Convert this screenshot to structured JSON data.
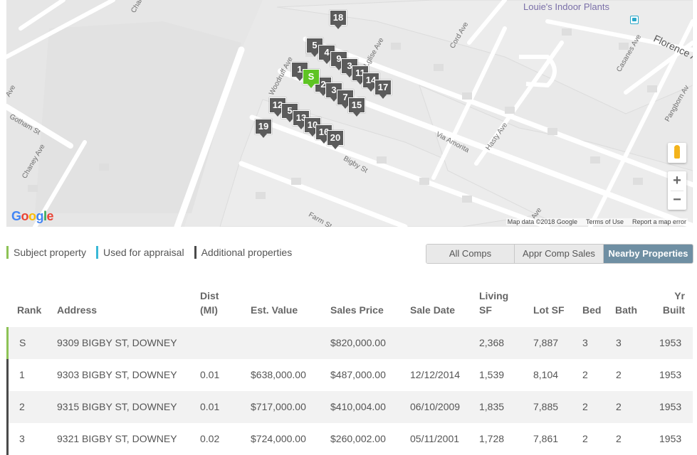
{
  "map": {
    "poi": "Louie's Indoor Plants",
    "streets": {
      "chaney_top": "Chane",
      "ave_left": "Ave",
      "gotham": "Gotham St",
      "chaney": "Chaney Ave",
      "woodruff": "Woodruff Ave",
      "lglise": "Lglise Ave",
      "cord": "Cord Ave",
      "casanes": "Casanes Ave",
      "florence": "Florence A",
      "pangborn": "Pangborn Av",
      "via_amorita": "Via Amorita",
      "hasty": "Hasty Ave",
      "bigby": "Bigby St",
      "farm": "Farm St",
      "ave_bottom": "Ave"
    },
    "markers": [
      "18",
      "5",
      "4",
      "9",
      "1",
      "S",
      "3",
      "2",
      "11",
      "14",
      "17",
      "3",
      "7",
      "15",
      "12",
      "5",
      "13",
      "10",
      "16",
      "20",
      "19"
    ],
    "google_logo": [
      "G",
      "o",
      "o",
      "g",
      "l",
      "e"
    ],
    "footer": {
      "data": "Map data ©2018 Google",
      "terms": "Terms of Use",
      "report": "Report a map error"
    },
    "zoom_in": "+",
    "zoom_out": "−"
  },
  "legend": [
    {
      "label": "Subject property",
      "color": "#8dc255"
    },
    {
      "label": "Used for appraisal",
      "color": "#39b8d6"
    },
    {
      "label": "Additional properties",
      "color": "#4a4a4a"
    }
  ],
  "tabs": [
    {
      "label": "All Comps",
      "active": false
    },
    {
      "label": "Appr Comp Sales",
      "active": false
    },
    {
      "label": "Nearby Properties",
      "active": true
    }
  ],
  "table": {
    "headers": {
      "rank": "Rank",
      "address": "Address",
      "dist_1": "Dist",
      "dist_2": "(MI)",
      "est_value": "Est. Value",
      "sales_price": "Sales Price",
      "sale_date": "Sale Date",
      "living_1": "Living",
      "living_2": "SF",
      "lot": "Lot SF",
      "bed": "Bed",
      "bath": "Bath",
      "yr_1": "Yr",
      "yr_2": "Built"
    },
    "rows": [
      {
        "rank": "S",
        "address": "9309 BIGBY ST, DOWNEY",
        "dist": "",
        "est_value": "",
        "sales_price": "$820,000.00",
        "sale_date": "",
        "living": "2,368",
        "lot": "7,887",
        "bed": "3",
        "bath": "3",
        "yr": "1953"
      },
      {
        "rank": "1",
        "address": "9303 BIGBY ST, DOWNEY",
        "dist": "0.01",
        "est_value": "$638,000.00",
        "sales_price": "$487,000.00",
        "sale_date": "12/12/2014",
        "living": "1,539",
        "lot": "8,104",
        "bed": "2",
        "bath": "2",
        "yr": "1953"
      },
      {
        "rank": "2",
        "address": "9315 BIGBY ST, DOWNEY",
        "dist": "0.01",
        "est_value": "$717,000.00",
        "sales_price": "$410,004.00",
        "sale_date": "06/10/2009",
        "living": "1,835",
        "lot": "7,885",
        "bed": "2",
        "bath": "2",
        "yr": "1953"
      },
      {
        "rank": "3",
        "address": "9321 BIGBY ST, DOWNEY",
        "dist": "0.02",
        "est_value": "$724,000.00",
        "sales_price": "$260,002.00",
        "sale_date": "05/11/2001",
        "living": "1,728",
        "lot": "7,861",
        "bed": "2",
        "bath": "2",
        "yr": "1953"
      }
    ]
  }
}
